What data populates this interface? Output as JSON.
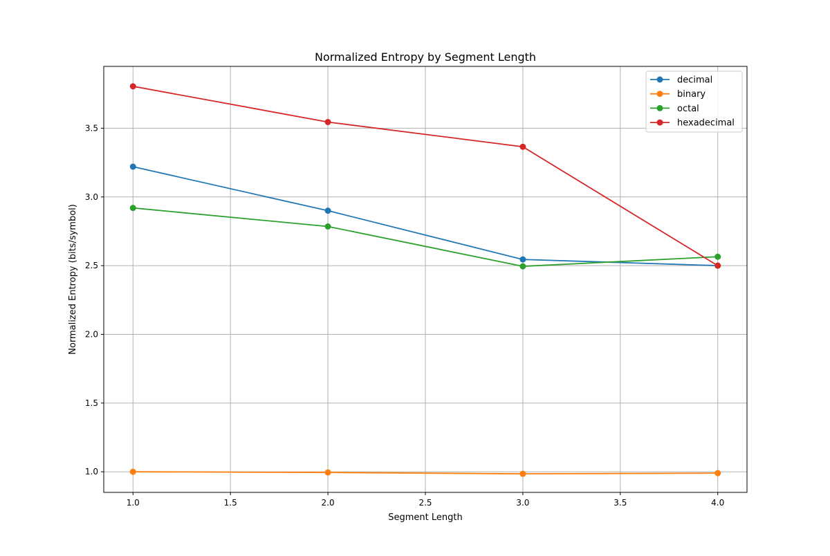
{
  "chart_data": {
    "type": "line",
    "title": "Normalized Entropy by Segment Length",
    "xlabel": "Segment Length",
    "ylabel": "Normalized Entropy (bits/symbol)",
    "xlim": [
      0.85,
      4.15
    ],
    "ylim": [
      0.85,
      3.95
    ],
    "xticks": [
      1.0,
      1.5,
      2.0,
      2.5,
      3.0,
      3.5,
      4.0
    ],
    "xtick_labels": [
      "1.0",
      "1.5",
      "2.0",
      "2.5",
      "3.0",
      "3.5",
      "4.0"
    ],
    "yticks": [
      1.0,
      1.5,
      2.0,
      2.5,
      3.0,
      3.5
    ],
    "ytick_labels": [
      "1.0",
      "1.5",
      "2.0",
      "2.5",
      "3.0",
      "3.5"
    ],
    "grid": true,
    "legend_position": "top-right",
    "x": [
      1.0,
      2.0,
      3.0,
      4.0
    ],
    "series": [
      {
        "name": "decimal",
        "color": "#1f77b4",
        "values": [
          3.22,
          2.9,
          2.545,
          2.5
        ]
      },
      {
        "name": "binary",
        "color": "#ff7f0e",
        "values": [
          1.0,
          0.995,
          0.985,
          0.99
        ]
      },
      {
        "name": "octal",
        "color": "#2ca02c",
        "values": [
          2.92,
          2.785,
          2.495,
          2.565
        ]
      },
      {
        "name": "hexadecimal",
        "color": "#d62728",
        "values": [
          3.805,
          3.545,
          3.365,
          2.5
        ]
      }
    ]
  }
}
